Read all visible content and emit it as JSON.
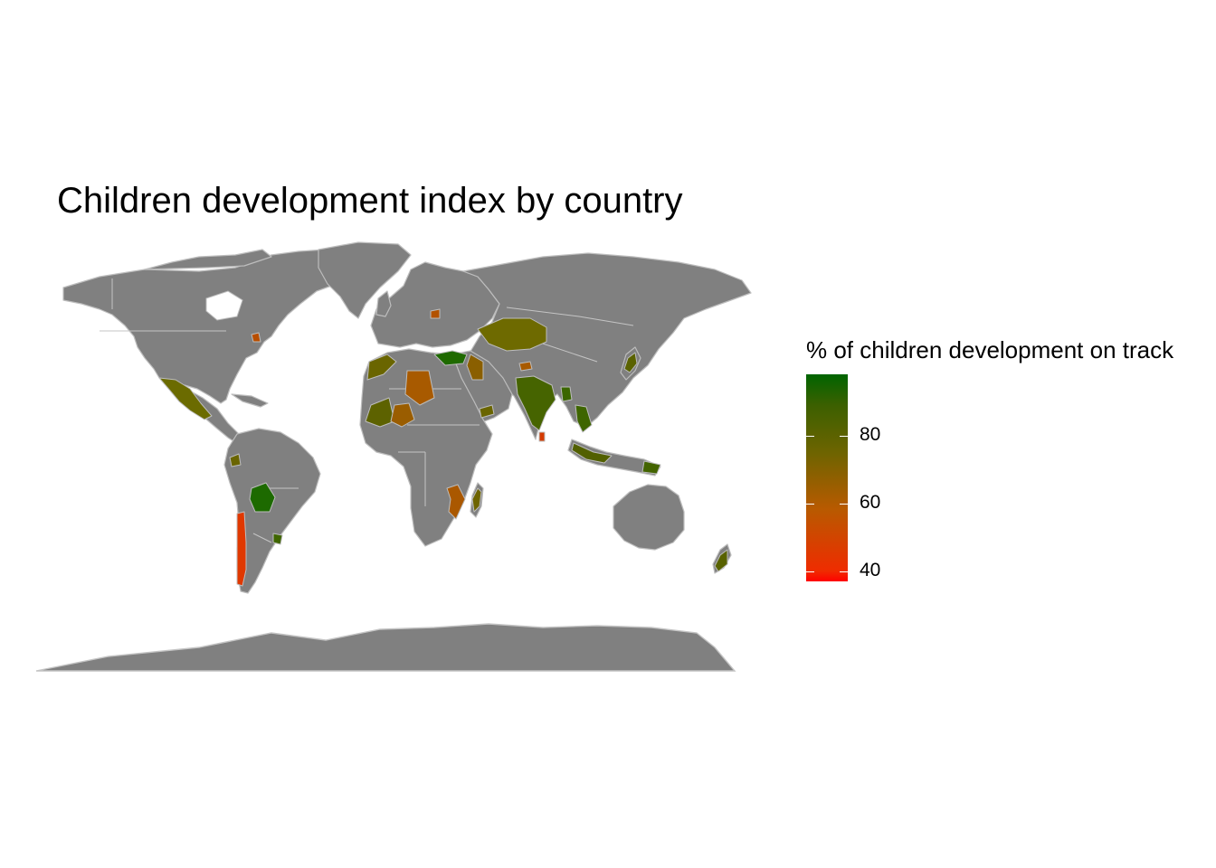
{
  "chart_data": {
    "type": "choropleth",
    "title": "Children development index by country",
    "legend": {
      "title": "% of children development on track",
      "position": "right",
      "scale": {
        "low_color": "#ff0000",
        "high_color": "#006400",
        "min": 37,
        "max": 98
      },
      "ticks": [
        {
          "label": "80",
          "value": 80
        },
        {
          "label": "60",
          "value": 60
        },
        {
          "label": "40",
          "value": 40
        }
      ]
    },
    "no_data_color": "#808080"
  }
}
